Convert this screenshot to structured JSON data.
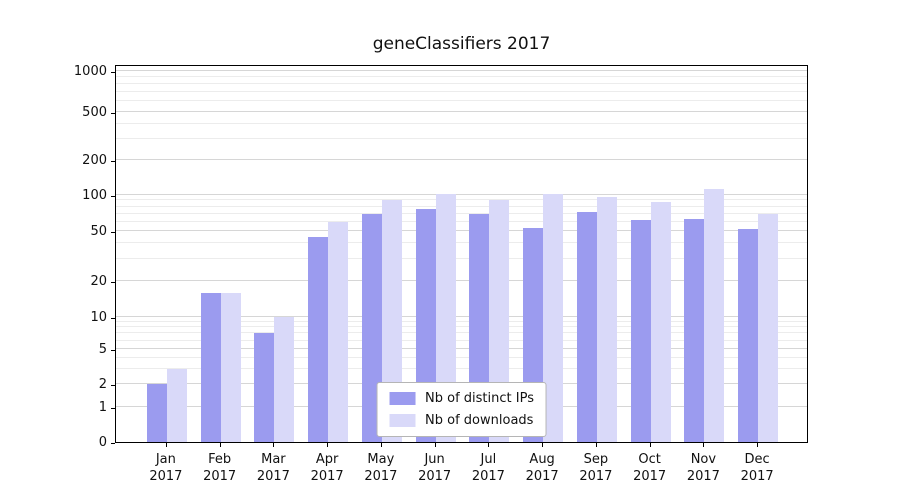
{
  "chart_data": {
    "type": "bar",
    "title": "geneClassifiers 2017",
    "categories": [
      "Jan",
      "Feb",
      "Mar",
      "Apr",
      "May",
      "Jun",
      "Jul",
      "Aug",
      "Sep",
      "Oct",
      "Nov",
      "Dec"
    ],
    "year": "2017",
    "series": [
      {
        "name": "Nb of distinct IPs",
        "color": "#9b9bef",
        "values": [
          2,
          16,
          7,
          45,
          70,
          76,
          70,
          53,
          72,
          62,
          63,
          52
        ]
      },
      {
        "name": "Nb of downloads",
        "color": "#d9d9f9",
        "values": [
          3,
          16,
          10,
          60,
          90,
          102,
          90,
          103,
          97,
          87,
          113,
          70
        ]
      }
    ],
    "yticks": [
      0,
      1,
      2,
      5,
      10,
      20,
      50,
      100,
      200,
      500,
      1000
    ],
    "ylim": [
      0,
      1000
    ],
    "yscale": "symlog",
    "grid": true,
    "legend_position": "lower center"
  }
}
